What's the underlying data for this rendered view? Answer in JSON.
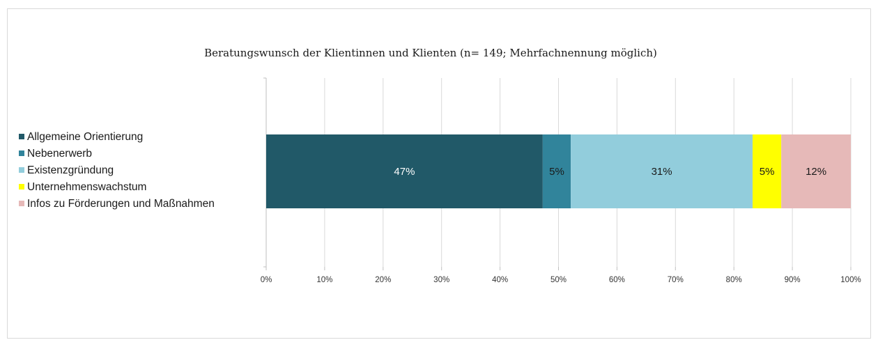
{
  "chart_data": {
    "type": "bar",
    "orientation": "horizontal",
    "stacked": true,
    "percent_stacked": true,
    "title": "Beratungswunsch der Klientinnen und Klienten (n= 149; Mehrfachnennung möglich)",
    "xlabel": "",
    "ylabel": "",
    "xlim": [
      0,
      100
    ],
    "x_ticks": [
      "0%",
      "10%",
      "20%",
      "30%",
      "40%",
      "50%",
      "60%",
      "70%",
      "80%",
      "90%",
      "100%"
    ],
    "grid": true,
    "legend_position": "left",
    "series": [
      {
        "name": "Allgemeine Orientierung",
        "value": 47.3,
        "label": "47%",
        "color": "#215968",
        "label_color": "#ffffff"
      },
      {
        "name": "Nebenerwerb",
        "value": 4.8,
        "label": "5%",
        "color": "#31849b",
        "label_color": "#1a1a1a"
      },
      {
        "name": "Existenzgründung",
        "value": 31.1,
        "label": "31%",
        "color": "#92cddc",
        "label_color": "#1a1a1a"
      },
      {
        "name": "Unternehmenswachstum",
        "value": 4.9,
        "label": "5%",
        "color": "#ffff00",
        "label_color": "#1a1a1a"
      },
      {
        "name": "Infos zu Förderungen und Maßnahmen",
        "value": 11.9,
        "label": "12%",
        "color": "#e6b9b8",
        "label_color": "#1a1a1a"
      }
    ]
  }
}
